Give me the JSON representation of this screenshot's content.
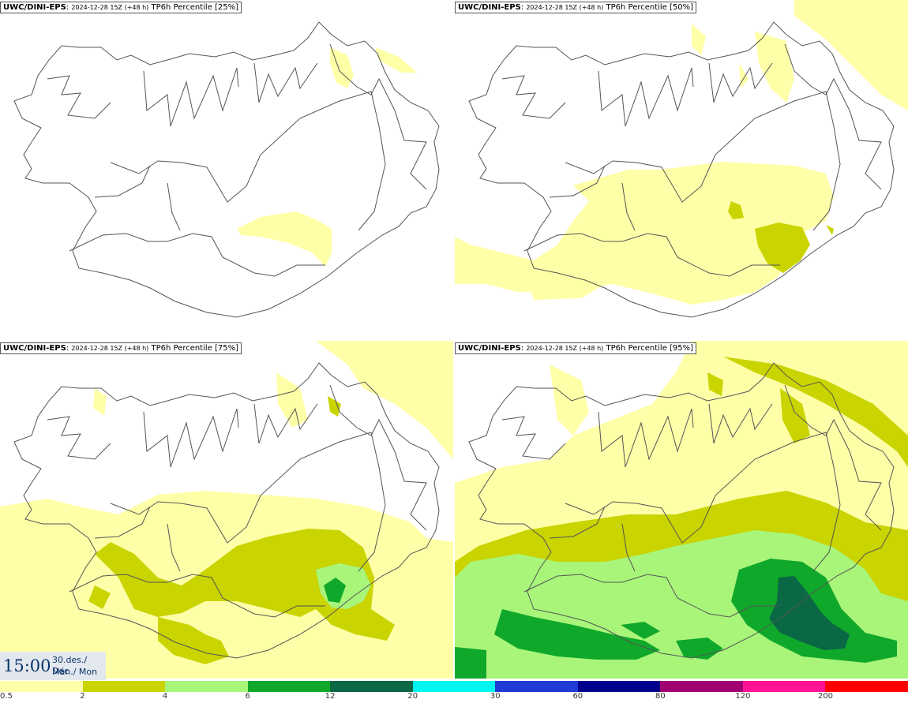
{
  "panels": [
    {
      "model": "UWC/DINI-EPS",
      "run": "2024-12-28 15Z (+48 h)",
      "product": "TP6h Percentile [25%]"
    },
    {
      "model": "UWC/DINI-EPS",
      "run": "2024-12-28 15Z (+48 h)",
      "product": "TP6h Percentile [50%]"
    },
    {
      "model": "UWC/DINI-EPS",
      "run": "2024-12-28 15Z (+48 h)",
      "product": "TP6h Percentile [75%]"
    },
    {
      "model": "UWC/DINI-EPS",
      "run": "2024-12-28 15Z (+48 h)",
      "product": "TP6h Percentile [95%]"
    }
  ],
  "valid_time": {
    "time": "15:00",
    "date_line": "30.des./ Dec",
    "day_line": "Mán./ Mon"
  },
  "legend": {
    "colors": [
      "#ffffa8",
      "#c9d400",
      "#a8f57a",
      "#10a82a",
      "#0a6845",
      "#00f5f0",
      "#1e3bd6",
      "#00008c",
      "#a00070",
      "#ff1493",
      "#ff0000"
    ],
    "ticks": [
      "0.5",
      "2",
      "4",
      "6",
      "12",
      "20",
      "30",
      "60",
      "80",
      "120",
      "200"
    ]
  }
}
